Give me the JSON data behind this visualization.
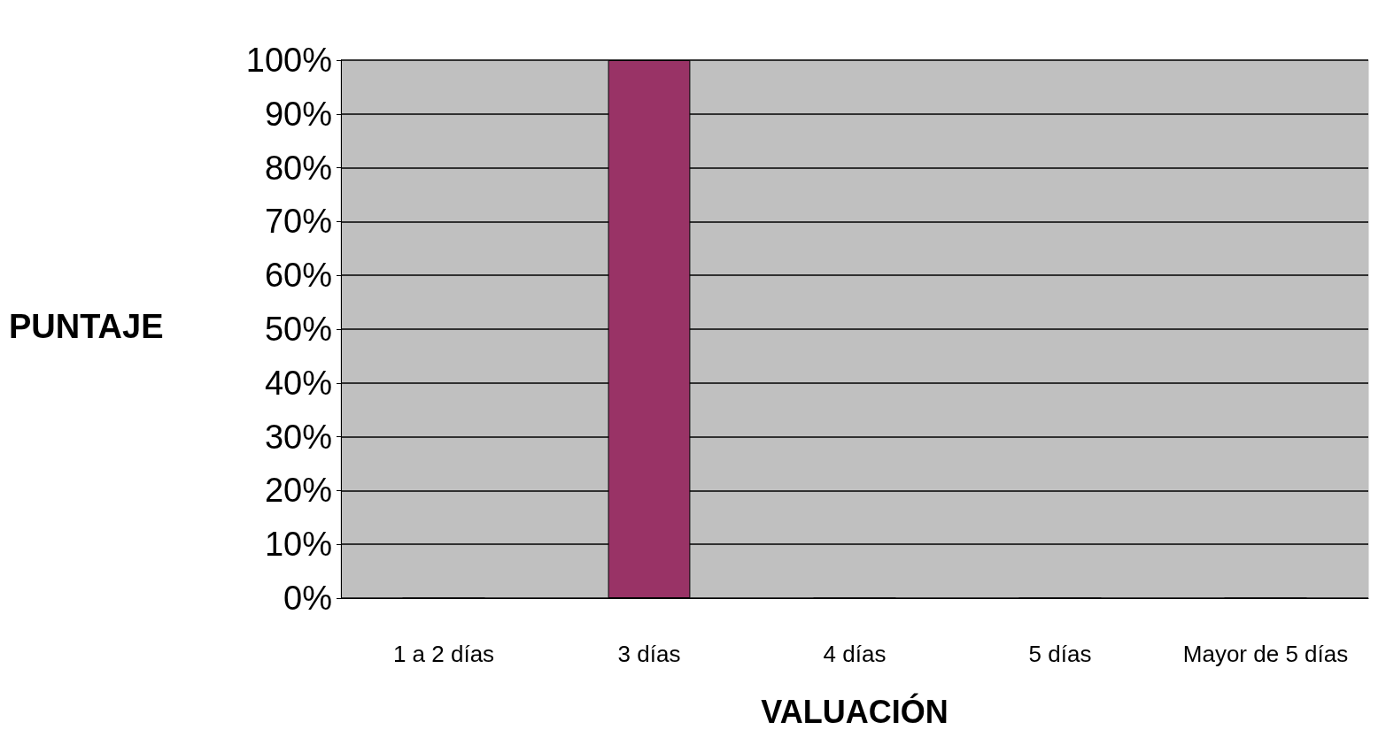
{
  "chart_data": {
    "type": "bar",
    "xlabel": "VALUACIÓN",
    "ylabel": "PUNTAJE",
    "categories": [
      "1 a 2 días",
      "3 días",
      "4 días",
      "5 días",
      "Mayor de 5 días"
    ],
    "values": [
      0,
      100,
      0,
      0,
      0
    ],
    "color": "#993366",
    "ylim": [
      0,
      100
    ],
    "yticks": [
      {
        "value": 0,
        "label": "0%"
      },
      {
        "value": 10,
        "label": "10%"
      },
      {
        "value": 20,
        "label": "20%"
      },
      {
        "value": 30,
        "label": "30%"
      },
      {
        "value": 40,
        "label": "40%"
      },
      {
        "value": 50,
        "label": "50%"
      },
      {
        "value": 60,
        "label": "60%"
      },
      {
        "value": 70,
        "label": "70%"
      },
      {
        "value": 80,
        "label": "80%"
      },
      {
        "value": 90,
        "label": "90%"
      },
      {
        "value": 100,
        "label": "100%"
      }
    ],
    "grid": "y"
  }
}
